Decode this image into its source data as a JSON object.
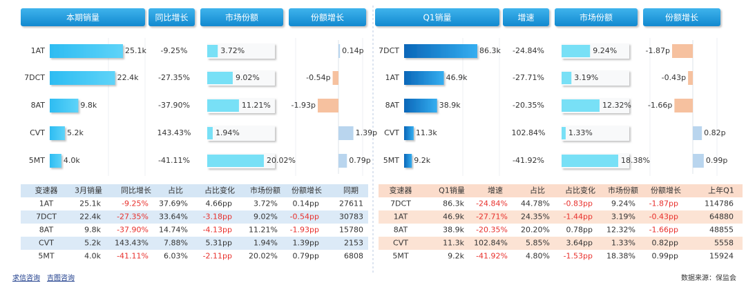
{
  "panels": [
    {
      "headers": [
        "本期销量",
        "同比增长",
        "市场份额",
        "份额增长"
      ],
      "categories": [
        "1AT",
        "7DCT",
        "8AT",
        "CVT",
        "5MT"
      ],
      "sales": {
        "values": [
          25100,
          22400,
          9800,
          5200,
          4000
        ],
        "value_labels": [
          "25.1k",
          "22.4k",
          "9.8k",
          "5.2k",
          "4.0k"
        ]
      },
      "growth": [
        "-9.25%",
        "-27.35%",
        "-37.90%",
        "143.43%",
        "-41.11%"
      ],
      "share": {
        "values": [
          3.72,
          9.02,
          11.21,
          1.94,
          20.02
        ],
        "value_labels": [
          "3.72%",
          "9.02%",
          "11.21%",
          "1.94%",
          "20.02%"
        ]
      },
      "share_change": {
        "values": [
          0.14,
          -0.54,
          -1.93,
          1.39,
          0.79
        ],
        "value_labels": [
          "0.14p",
          "-0.54p",
          "-1.93p",
          "1.39p",
          "0.79p"
        ]
      },
      "table": {
        "columns": [
          "变速器",
          "3月销量",
          "同比增长",
          "占比",
          "占比变化",
          "市场份额",
          "份额增长",
          "同期"
        ],
        "rows": [
          [
            "1AT",
            "25.1k",
            "-9.25%",
            "37.69%",
            "4.66pp",
            "3.72%",
            "0.14pp",
            "27611"
          ],
          [
            "7DCT",
            "22.4k",
            "-27.35%",
            "33.64%",
            "-3.18pp",
            "9.02%",
            "-0.54pp",
            "30783"
          ],
          [
            "8AT",
            "9.8k",
            "-37.90%",
            "14.74%",
            "-4.13pp",
            "11.21%",
            "-1.93pp",
            "15780"
          ],
          [
            "CVT",
            "5.2k",
            "143.43%",
            "7.88%",
            "5.31pp",
            "1.94%",
            "1.39pp",
            "2153"
          ],
          [
            "5MT",
            "4.0k",
            "-41.11%",
            "6.03%",
            "-2.11pp",
            "20.02%",
            "0.79pp",
            "6808"
          ]
        ]
      }
    },
    {
      "headers": [
        "Q1销量",
        "增速",
        "市场份额",
        "份额增长"
      ],
      "categories": [
        "7DCT",
        "1AT",
        "8AT",
        "CVT",
        "5MT"
      ],
      "sales": {
        "values": [
          86300,
          46900,
          38900,
          11300,
          9200
        ],
        "value_labels": [
          "86.3k",
          "46.9k",
          "38.9k",
          "11.3k",
          "9.2k"
        ]
      },
      "growth": [
        "-24.84%",
        "-27.71%",
        "-20.35%",
        "102.84%",
        "-41.92%"
      ],
      "share": {
        "values": [
          9.24,
          3.19,
          12.32,
          1.33,
          18.38
        ],
        "value_labels": [
          "9.24%",
          "3.19%",
          "12.32%",
          "1.33%",
          "18.38%"
        ]
      },
      "share_change": {
        "values": [
          -1.87,
          -0.43,
          -1.66,
          0.82,
          0.99
        ],
        "value_labels": [
          "-1.87p",
          "-0.43p",
          "-1.66p",
          "0.82p",
          "0.99p"
        ]
      },
      "table": {
        "columns": [
          "变速器",
          "Q1销量",
          "增速",
          "占比",
          "占比变化",
          "市场份额",
          "份额增长",
          "上年Q1"
        ],
        "rows": [
          [
            "7DCT",
            "86.3k",
            "-24.84%",
            "44.78%",
            "-0.83pp",
            "9.24%",
            "-1.87pp",
            "114786"
          ],
          [
            "1AT",
            "46.9k",
            "-27.71%",
            "24.35%",
            "-1.44pp",
            "3.19%",
            "-0.43pp",
            "64880"
          ],
          [
            "8AT",
            "38.9k",
            "-20.35%",
            "20.20%",
            "0.78pp",
            "12.32%",
            "-1.66pp",
            "48855"
          ],
          [
            "CVT",
            "11.3k",
            "102.84%",
            "5.85%",
            "3.64pp",
            "1.33%",
            "0.82pp",
            "5558"
          ],
          [
            "5MT",
            "9.2k",
            "-41.92%",
            "4.80%",
            "-1.53pp",
            "18.38%",
            "0.99pp",
            "15924"
          ]
        ]
      }
    }
  ],
  "footer": {
    "links": [
      "求信咨询",
      "吉图咨询"
    ],
    "source": "数据来源：保监会"
  }
}
